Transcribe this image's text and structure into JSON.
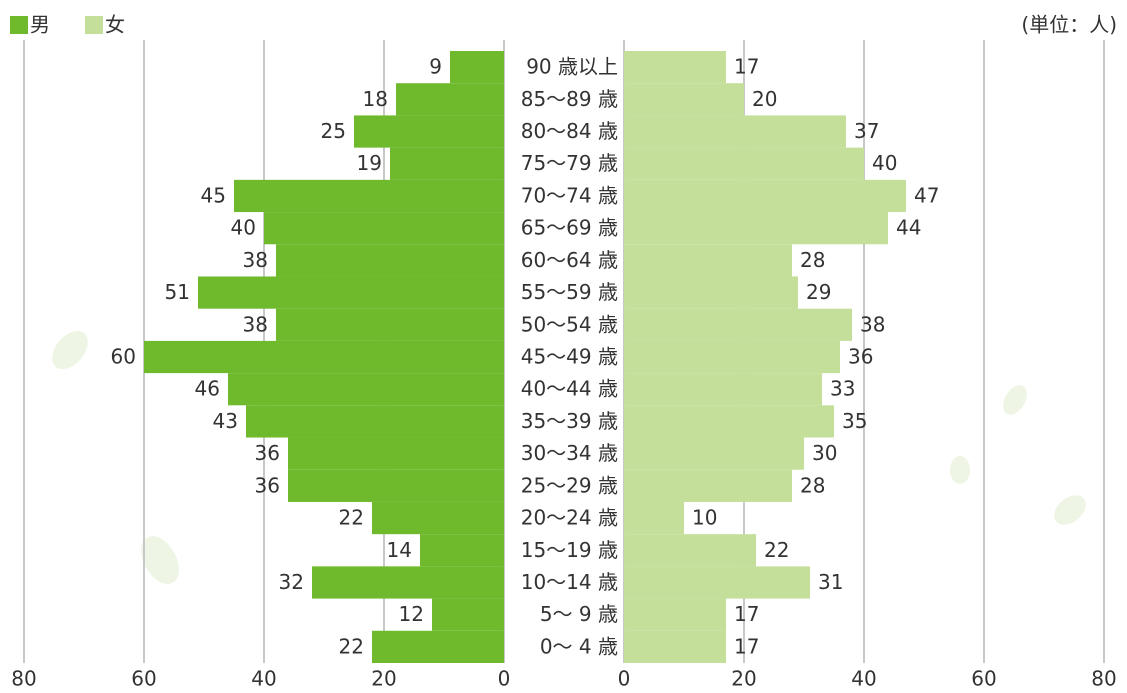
{
  "chart_data": {
    "type": "pyramid",
    "unit_note": "(単位：人)",
    "categories": [
      "90 歳以上",
      "85～89 歳",
      "80～84 歳",
      "75～79 歳",
      "70～74 歳",
      "65～69 歳",
      "60～64 歳",
      "55～59 歳",
      "50～54 歳",
      "45～49 歳",
      "40～44 歳",
      "35～39 歳",
      "30～34 歳",
      "25～29 歳",
      "20～24 歳",
      "15～19 歳",
      "10～14 歳",
      "5～ 9 歳",
      "0～ 4 歳"
    ],
    "series": [
      {
        "name": "男",
        "color": "#6fba2c",
        "values": [
          9,
          18,
          25,
          19,
          45,
          40,
          38,
          51,
          38,
          60,
          46,
          43,
          36,
          36,
          22,
          14,
          32,
          12,
          22
        ]
      },
      {
        "name": "女",
        "color": "#c3df9a",
        "values": [
          17,
          20,
          37,
          40,
          47,
          44,
          28,
          29,
          38,
          36,
          33,
          35,
          30,
          28,
          10,
          22,
          31,
          17,
          17
        ]
      }
    ],
    "xlim": [
      0,
      80
    ],
    "xticks": [
      0,
      20,
      40,
      60,
      80
    ],
    "grid": true
  }
}
